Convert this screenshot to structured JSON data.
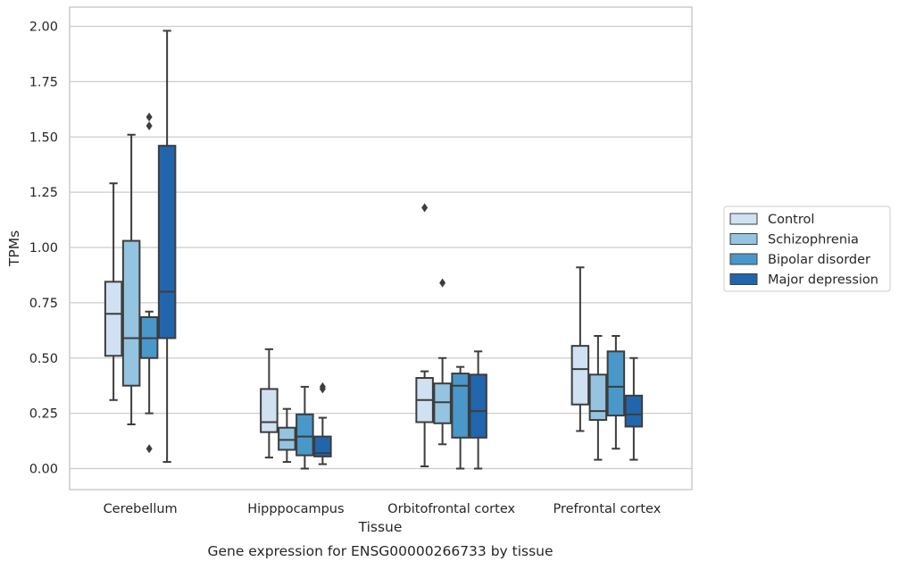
{
  "chart_data": {
    "type": "box",
    "caption": "Gene expression for ENSG00000266733 by tissue",
    "xlabel": "Tissue",
    "ylabel": "TPMs",
    "ylim": [
      -0.1,
      2.08
    ],
    "yticks": [
      "0.00",
      "0.25",
      "0.50",
      "0.75",
      "1.00",
      "1.25",
      "1.50",
      "1.75",
      "2.00"
    ],
    "grid": "horizontal",
    "legend_position": "right, outside plot",
    "categories": [
      "Cerebellum",
      "Hipppocampus",
      "Orbitofrontal cortex",
      "Prefrontal cortex"
    ],
    "series": [
      {
        "name": "Control",
        "color": "#d0e1f2",
        "boxes": [
          {
            "whislo": 0.31,
            "q1": 0.51,
            "med": 0.7,
            "q3": 0.845,
            "whishi": 1.29,
            "fliers": []
          },
          {
            "whislo": 0.05,
            "q1": 0.165,
            "med": 0.21,
            "q3": 0.36,
            "whishi": 0.54,
            "fliers": []
          },
          {
            "whislo": 0.01,
            "q1": 0.21,
            "med": 0.31,
            "q3": 0.41,
            "whishi": 0.44,
            "fliers": [
              1.18
            ]
          },
          {
            "whislo": 0.17,
            "q1": 0.29,
            "med": 0.45,
            "q3": 0.555,
            "whishi": 0.91,
            "fliers": []
          }
        ]
      },
      {
        "name": "Schizophrenia",
        "color": "#94c4df",
        "boxes": [
          {
            "whislo": 0.2,
            "q1": 0.375,
            "med": 0.59,
            "q3": 1.03,
            "whishi": 1.51,
            "fliers": []
          },
          {
            "whislo": 0.03,
            "q1": 0.085,
            "med": 0.13,
            "q3": 0.185,
            "whishi": 0.27,
            "fliers": []
          },
          {
            "whislo": 0.11,
            "q1": 0.205,
            "med": 0.3,
            "q3": 0.385,
            "whishi": 0.5,
            "fliers": [
              0.84
            ]
          },
          {
            "whislo": 0.04,
            "q1": 0.22,
            "med": 0.26,
            "q3": 0.425,
            "whishi": 0.6,
            "fliers": []
          }
        ]
      },
      {
        "name": "Bipolar disorder",
        "color": "#4a98c9",
        "boxes": [
          {
            "whislo": 0.25,
            "q1": 0.5,
            "med": 0.59,
            "q3": 0.685,
            "whishi": 0.71,
            "fliers": [
              0.09,
              1.55,
              1.59
            ]
          },
          {
            "whislo": 0.0,
            "q1": 0.06,
            "med": 0.145,
            "q3": 0.245,
            "whishi": 0.37,
            "fliers": []
          },
          {
            "whislo": 0.0,
            "q1": 0.14,
            "med": 0.375,
            "q3": 0.43,
            "whishi": 0.46,
            "fliers": []
          },
          {
            "whislo": 0.09,
            "q1": 0.24,
            "med": 0.37,
            "q3": 0.53,
            "whishi": 0.6,
            "fliers": []
          }
        ]
      },
      {
        "name": "Major depression",
        "color": "#2166ac",
        "boxes": [
          {
            "whislo": 0.03,
            "q1": 0.59,
            "med": 0.8,
            "q3": 1.46,
            "whishi": 1.98,
            "fliers": []
          },
          {
            "whislo": 0.02,
            "q1": 0.055,
            "med": 0.07,
            "q3": 0.145,
            "whishi": 0.23,
            "fliers": [
              0.36,
              0.37
            ]
          },
          {
            "whislo": 0.0,
            "q1": 0.14,
            "med": 0.26,
            "q3": 0.425,
            "whishi": 0.53,
            "fliers": []
          },
          {
            "whislo": 0.04,
            "q1": 0.19,
            "med": 0.245,
            "q3": 0.33,
            "whishi": 0.5,
            "fliers": []
          }
        ]
      }
    ]
  }
}
